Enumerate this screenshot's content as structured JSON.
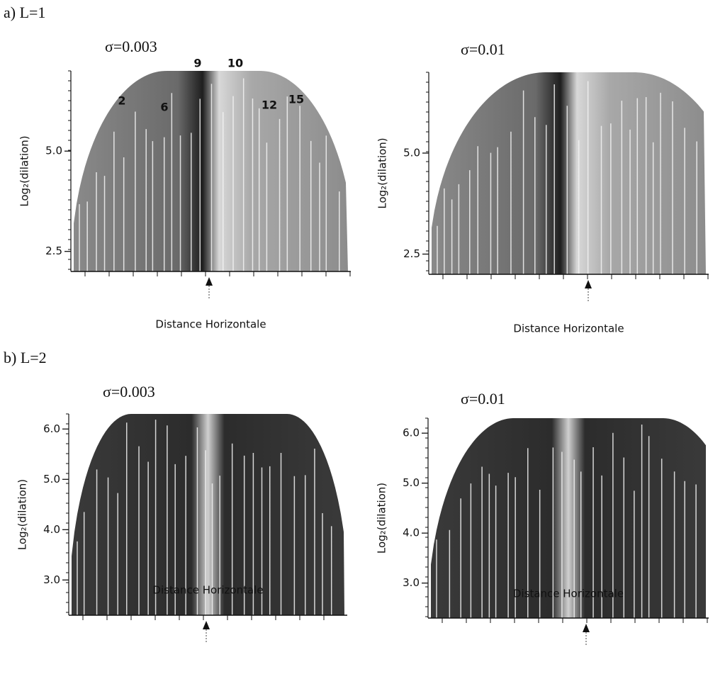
{
  "figure": {
    "sections": [
      {
        "label": "a) L=1",
        "panels": [
          {
            "title": "σ=0.003",
            "y_label": "Log₂(dilation)",
            "x_label": "Distance Horizontale",
            "ylim": [
              2.0,
              7.0
            ],
            "yticks": [
              {
                "value": 5,
                "label": "5.0"
              },
              {
                "value": 2.5,
                "label": "2.5"
              }
            ],
            "annotations": [
              "2",
              "6",
              "9",
              "10",
              "12",
              "15"
            ]
          },
          {
            "title": "σ=0.01",
            "y_label": "Log₂(dilation)",
            "x_label": "Distance Horizontale",
            "ylim": [
              2.0,
              7.0
            ],
            "yticks": [
              {
                "value": 5,
                "label": "5.0"
              },
              {
                "value": 2.5,
                "label": "2.5"
              }
            ]
          }
        ]
      },
      {
        "label": "b) L=2",
        "panels": [
          {
            "title": "σ=0.003",
            "y_label": "Log₂(dilation)",
            "x_label": "Distance Horizontale",
            "ylim": [
              2.3,
              6.3
            ],
            "yticks": [
              {
                "value": 6,
                "label": "6.0"
              },
              {
                "value": 5,
                "label": "5.0"
              },
              {
                "value": 4,
                "label": "4.0"
              },
              {
                "value": 3,
                "label": "3.0"
              }
            ]
          },
          {
            "title": "σ=0.01",
            "y_label": "Log₂(dilation)",
            "x_label": "Distance Horizontale",
            "ylim": [
              2.3,
              6.3
            ],
            "yticks": [
              {
                "value": 6,
                "label": "6.0"
              },
              {
                "value": 5,
                "label": "5.0"
              },
              {
                "value": 4,
                "label": "4.0"
              },
              {
                "value": 3,
                "label": "3.0"
              }
            ]
          }
        ]
      }
    ]
  }
}
